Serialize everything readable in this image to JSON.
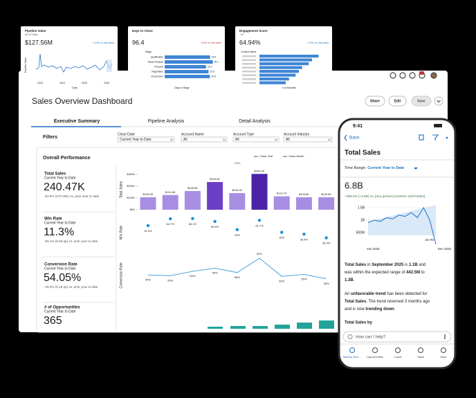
{
  "cards": [
    {
      "title": "Pipeline Value",
      "subtitle": "As of Today",
      "value": "$127.56M",
      "delta": "+4.9% vs. last week",
      "x_labels": [
        "2023",
        "2024",
        "2025",
        "2026"
      ],
      "x_title": "Date",
      "y_title": "Pipeline Value",
      "color": "#1b6fc2"
    },
    {
      "title": "Days to Close",
      "value": "96.4",
      "delta": "-3.6% vs. last week",
      "y_title": "Stage",
      "categories": [
        "Qualification",
        "Needs Analysis",
        "Proposal",
        "Negotiation",
        "Closed Won"
      ],
      "values": [
        24.6,
        26.1,
        22.4,
        23.8,
        24.5
      ],
      "xlim": [
        0,
        30
      ],
      "x_title": "Days in Stage",
      "color": "#3f86d6"
    },
    {
      "title": "Engagement Score",
      "subtitle": "+10",
      "value": "64.94%",
      "delta": "+4.9% vs. last week",
      "y_title": "Contact Name",
      "values": [
        18,
        16,
        15,
        13,
        12,
        11,
        9,
        8
      ],
      "xlim": [
        0,
        20
      ],
      "x_title": "# of Activities",
      "color": "#3f86d6"
    }
  ],
  "dashboard": {
    "title": "Sales Overview Dashboard",
    "buttons": [
      "Share",
      "Edit",
      "Save"
    ],
    "tabs": [
      "Executive Summary",
      "Pipeline Analysis",
      "Detail Analysis"
    ],
    "filters_label": "Filters",
    "filters": [
      {
        "label": "Close Date",
        "value": "Current Year to Date"
      },
      {
        "label": "Account Name",
        "value": "All"
      },
      {
        "label": "Account Type",
        "value": "All"
      },
      {
        "label": "Account Industry",
        "value": "All"
      }
    ],
    "section_title": "Overall Performance",
    "legend": [
      "Close Year",
      "Close Month"
    ],
    "year": "2025",
    "metrics": [
      {
        "name": "Total Sales",
        "period": "Current Year to Date",
        "value": "240.47K",
        "delta": "-52.9% (270.26K) vs. prior year to date"
      },
      {
        "name": "Win Rate",
        "period": "Current Year to Date",
        "value": "11.3%",
        "delta": "-80.1% (0.65 pp) vs. prior year to date"
      },
      {
        "name": "Conversion Rate",
        "period": "Current Year to Date",
        "value": "54.05%",
        "delta": "-25.0% (0.18 pp) vs. prior year to date"
      },
      {
        "name": "# of Opportunities",
        "period": "Current Year to Date",
        "value": "365"
      }
    ],
    "sales_chart": {
      "type": "bar",
      "y_title": "Total Sales",
      "ylim": [
        0,
        340000
      ],
      "yticks": [
        {
          "value": 0,
          "label": "$0K"
        },
        {
          "value": 100000,
          "label": "$100K"
        },
        {
          "value": 200000,
          "label": "$200K"
        },
        {
          "value": 300000,
          "label": "$300K"
        }
      ],
      "values": [
        105600,
        124600,
        158500,
        234600,
        140500,
        303400,
        113700,
        105600,
        105600
      ],
      "value_labels": [
        "$105.6K",
        "$124.6K",
        "$158.5K",
        "$234.6K",
        "$140.5K",
        "$303.4K",
        "$113.7K",
        "$105.6K",
        "$105.6K"
      ],
      "colors": [
        "#a88ee3",
        "#a88ee3",
        "#a88ee3",
        "#6d3fc4",
        "#a88ee3",
        "#4a23a8",
        "#a88ee3",
        "#a88ee3",
        "#a88ee3"
      ]
    },
    "win_chart": {
      "type": "scatter",
      "y_title": "Win Rate",
      "ylim": [
        20,
        70
      ],
      "color": "#1b8fd8",
      "values": [
        51.6,
        64.7,
        65.1,
        59.6,
        44,
        61.7,
        39,
        35.4,
        28.4
      ],
      "value_labels": [
        "51.6%",
        "64.7%",
        "65.1%",
        "59.6%",
        "44%",
        "61.7%",
        "39%",
        "35.4%",
        "28.4%"
      ]
    },
    "conv_chart": {
      "type": "line",
      "y_title": "Conversion Rate",
      "ylim": [
        40,
        90
      ],
      "color": "#4aa3d8",
      "values": [
        54,
        53,
        60,
        65,
        58,
        81,
        52,
        55,
        48
      ],
      "value_labels": [
        "54%",
        "53%",
        "60%",
        "65%",
        "58%",
        "81%",
        "52%",
        "55%",
        "48%"
      ]
    }
  },
  "phone": {
    "time": "9:41",
    "back": "Back",
    "title": "Total Sales",
    "range_label": "Time Range:",
    "range_value": "Current Year to Date",
    "value": "6.8B",
    "delta": "+259.4% (+4.8B) vs. prior period (1/1/2024–10/27/2024)",
    "chart": {
      "type": "line",
      "color": "#1b6fc2",
      "ylim": [
        0,
        1600000000
      ],
      "yticks": [
        {
          "value": 500000000,
          "label": "500M"
        },
        {
          "value": 1000000000,
          "label": "1B"
        },
        {
          "value": 1500000000,
          "label": "1.5B"
        }
      ],
      "x_labels": [
        "Jan 2025",
        "Dec 2025"
      ],
      "values": [
        900000000,
        1000000000,
        950000000,
        1100000000,
        1050000000,
        1200000000,
        1150000000,
        1300000000,
        1100000000,
        1500000000,
        1000000000,
        30700000
      ],
      "annotation": "30.7M"
    },
    "insight1": [
      "Total Sales",
      " in ",
      "September 2025",
      " is ",
      "1.1B",
      " and",
      "was within the expected range of ",
      "442.5M",
      " to",
      "1.3B",
      "."
    ],
    "insight2": [
      "An ",
      "unfavorable trend",
      " has been detected for",
      "Total Sales",
      ". The trend reversed 3 months ago",
      "and is now ",
      "trending down",
      "."
    ],
    "insight3": "Total Sales by",
    "prompt": "How can I help?",
    "tabs": [
      "Tableau Next ...",
      "Opportunities",
      "Leads",
      "Tasks",
      "More"
    ]
  }
}
